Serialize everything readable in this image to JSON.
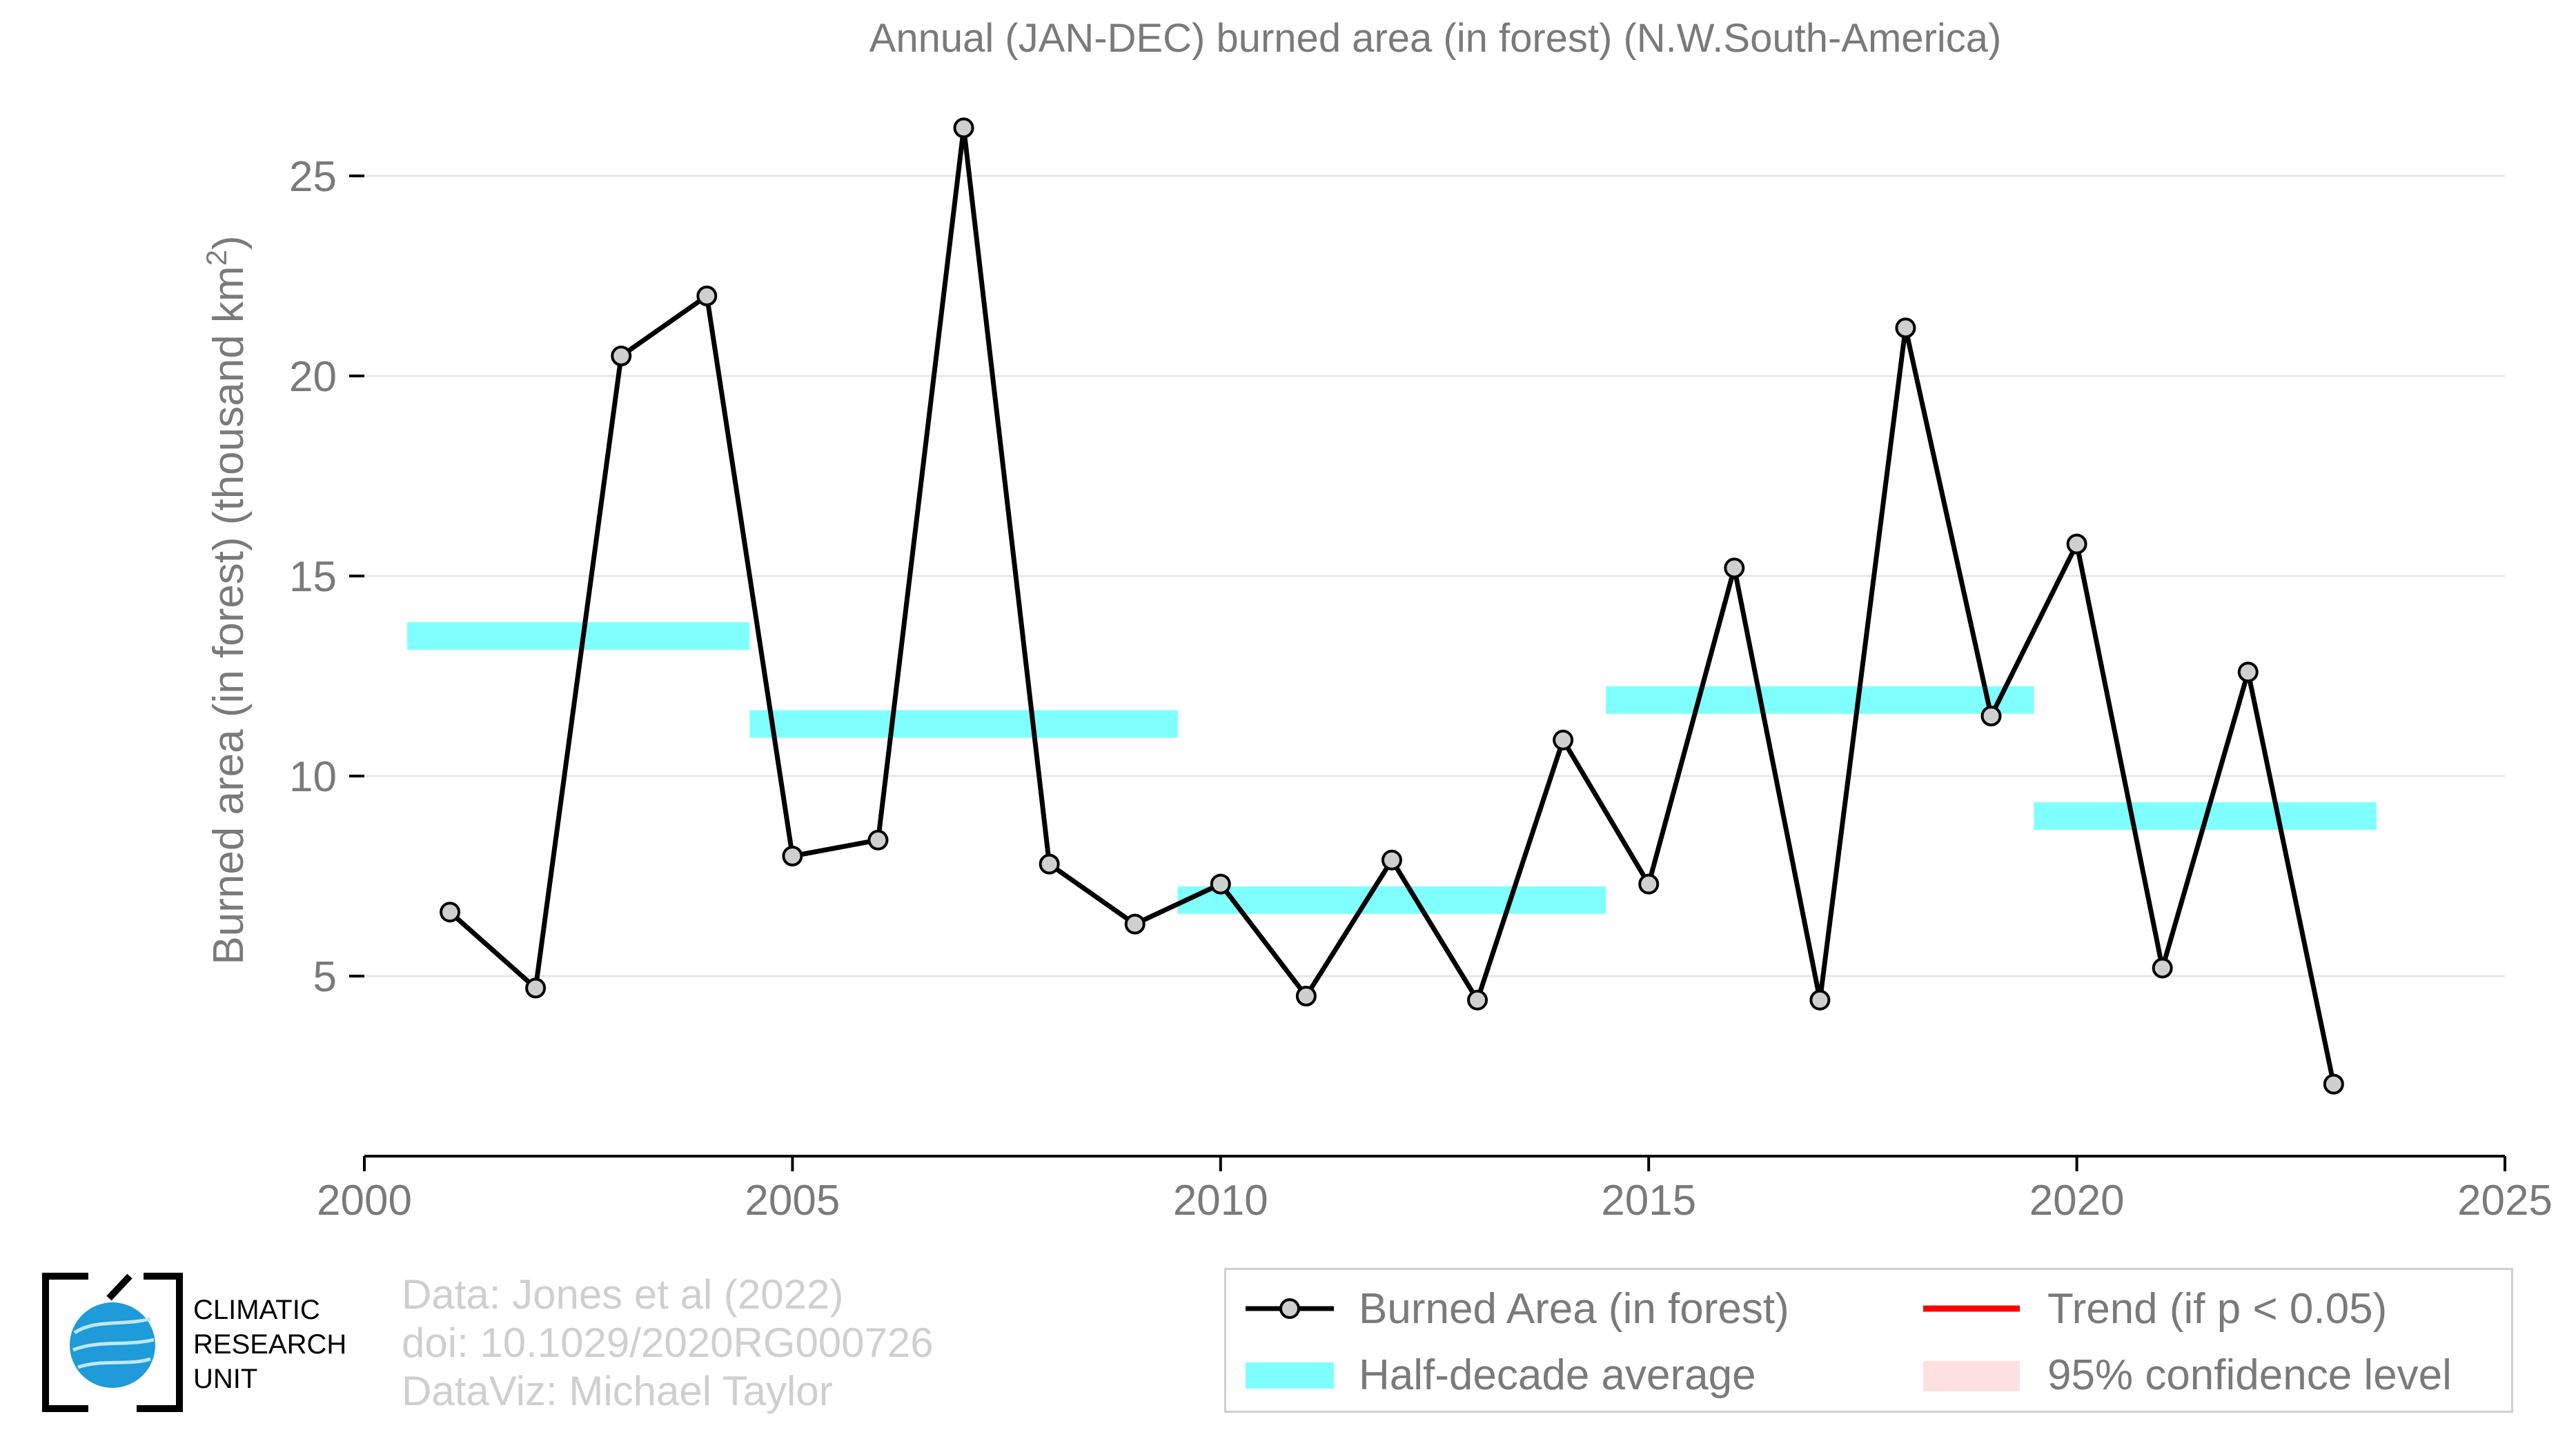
{
  "chart_data": {
    "type": "line",
    "title": "Annual (JAN-DEC) burned area (in forest) (N.W.South-America)",
    "ylabel": "Burned area (in forest) (thousand km",
    "ylabel_sup": "2",
    "ylabel_close": ")",
    "xlim": [
      2000,
      2025
    ],
    "ylim": [
      0.5,
      27.5
    ],
    "x_ticks": [
      2000,
      2005,
      2010,
      2015,
      2020,
      2025
    ],
    "y_ticks": [
      5,
      10,
      15,
      20,
      25
    ],
    "grid": true,
    "series": [
      {
        "name": "Burned Area (in forest)",
        "color": "#000000",
        "x": [
          2001,
          2002,
          2003,
          2004,
          2005,
          2006,
          2007,
          2008,
          2009,
          2010,
          2011,
          2012,
          2013,
          2014,
          2015,
          2016,
          2017,
          2018,
          2019,
          2020,
          2021,
          2022,
          2023
        ],
        "y": [
          6.6,
          4.7,
          20.5,
          22.0,
          8.0,
          8.4,
          26.2,
          7.8,
          6.3,
          7.3,
          4.5,
          7.9,
          4.4,
          10.9,
          7.3,
          15.2,
          4.4,
          21.2,
          11.5,
          15.8,
          5.2,
          12.6,
          2.3
        ]
      },
      {
        "name": "Half-decade average",
        "color": "#80ffff",
        "segments": [
          {
            "x0": 2000.5,
            "x1": 2004.5,
            "y": 13.5
          },
          {
            "x0": 2004.5,
            "x1": 2009.5,
            "y": 11.3
          },
          {
            "x0": 2009.5,
            "x1": 2014.5,
            "y": 6.9
          },
          {
            "x0": 2014.5,
            "x1": 2019.5,
            "y": 11.9
          },
          {
            "x0": 2019.5,
            "x1": 2023.5,
            "y": 9.0
          }
        ]
      }
    ]
  },
  "legend": {
    "items": [
      {
        "label": "Burned Area (in forest)",
        "symbol": "line-marker",
        "color": "#000000"
      },
      {
        "label": "Trend (if p < 0.05)",
        "symbol": "line",
        "color": "#ff0000"
      },
      {
        "label": "Half-decade average",
        "symbol": "band",
        "color": "#80ffff"
      },
      {
        "label": "95% confidence level",
        "symbol": "band",
        "color": "#ffe0e0"
      }
    ]
  },
  "credits": {
    "line1": "Data: Jones et al (2022)",
    "line2": "doi: 10.1029/2020RG000726",
    "line3": "DataViz: Michael Taylor"
  },
  "logo": {
    "line1": "CLIMATIC",
    "line2": "RESEARCH",
    "line3": "UNIT"
  }
}
